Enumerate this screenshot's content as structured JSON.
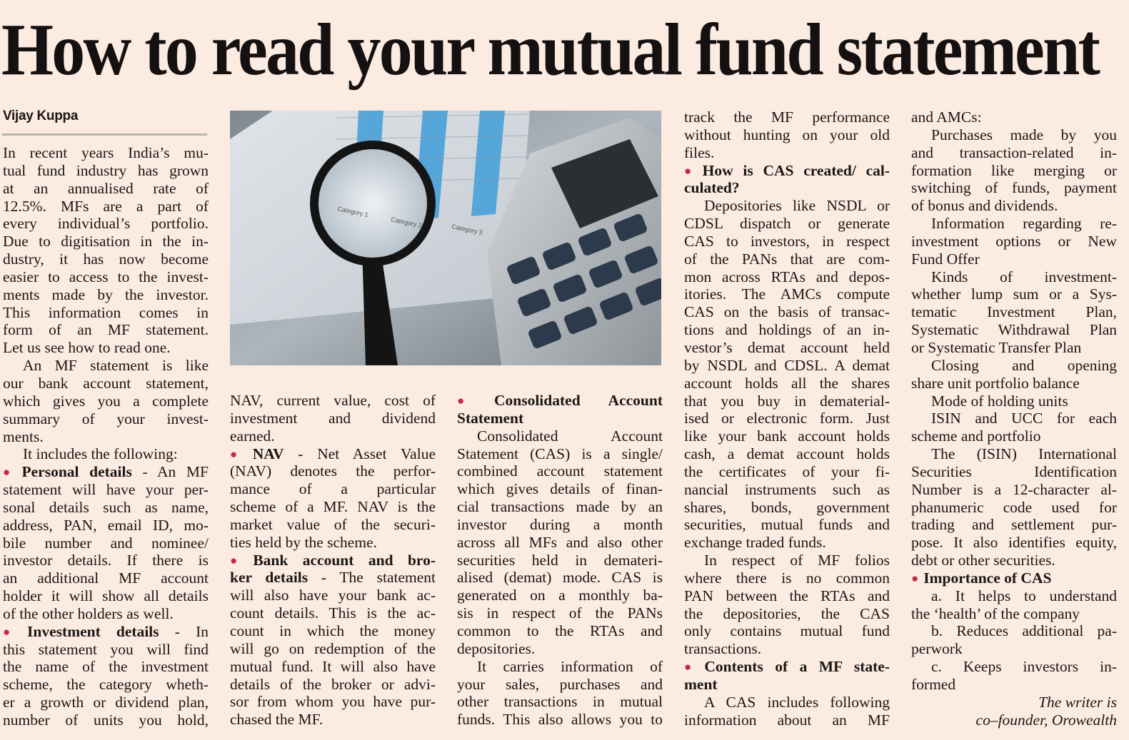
{
  "headline": "How to read your mutual fund statement",
  "byline": "Vijay Kuppa",
  "colors": {
    "background": "#fcebe0",
    "bullet": "#c42a4c",
    "rule": "#b9b3ae"
  },
  "photo": {
    "description_icon": "magnifying-glass-calculator-chart-photo",
    "chart_labels": [
      "Category 1",
      "Category 2",
      "Category 3"
    ]
  },
  "columns": [
    {
      "paragraphs": [
        {
          "style": "plain",
          "lines": [
            "In recent years India’s mu-",
            "tual fund industry has grown",
            "at an annualised rate of",
            "12.5%. MFs are a part of",
            "every individual’s portfolio.",
            "Due to digitisation in the in-",
            "dustry, it has now become",
            "easier to access to the invest-",
            "ments made by the investor.",
            "This information comes in",
            "form of an MF statement.",
            "Let us see how to read one."
          ]
        },
        {
          "style": "indent",
          "lines": [
            "An MF statement is like",
            "our bank account statement,",
            "which gives you a complete",
            "summary of your invest-",
            "ments."
          ]
        },
        {
          "style": "indent",
          "lines": [
            "It includes the following:"
          ]
        },
        {
          "style": "bullet",
          "lines": [
            [
              "Personal details",
              " - An MF"
            ],
            "statement will have your per-",
            "sonal details such as name,",
            "address, PAN, email ID, mo-",
            "bile number and nominee/",
            "investor details. If there is",
            "an additional MF account",
            "holder it will show all details",
            "of the other holders as well."
          ]
        },
        {
          "style": "bullet",
          "continues": true,
          "lines": [
            [
              "Investment details",
              " - In"
            ],
            "this statement you will find",
            "the name of the investment",
            "scheme, the category wheth-",
            "er a growth or dividend plan,",
            "number of units you hold,"
          ]
        }
      ]
    },
    {
      "paragraphs": [
        {
          "style": "plain",
          "lines": [
            "NAV, current value, cost of",
            "investment and dividend",
            "earned."
          ]
        },
        {
          "style": "bullet",
          "lines": [
            [
              "NAV",
              " - Net Asset Value"
            ],
            "(NAV) denotes the perfor-",
            "mance of a particular",
            "scheme of a MF. NAV is the",
            "market value of the securi-",
            "ties held by the scheme."
          ]
        },
        {
          "style": "bullet",
          "lines": [
            [
              "Bank account and bro-",
              ""
            ],
            [
              "ker details",
              " - The statement"
            ],
            "will also have your bank ac-",
            "count details. This is the ac-",
            "count in which the money",
            "will go on redemption of the",
            "mutual fund. It will also have",
            "details of the broker or advi-",
            "sor from whom you have pur-",
            "chased the MF."
          ]
        }
      ]
    },
    {
      "paragraphs": [
        {
          "style": "bullet",
          "lines": [
            [
              "Consolidated Account",
              ""
            ],
            [
              "Statement",
              ""
            ]
          ]
        },
        {
          "style": "indent",
          "lines": [
            "Consolidated Account",
            "Statement (CAS) is a single/",
            "combined account statement",
            "which gives details of finan-",
            "cial transactions made by an",
            "investor during a month",
            "across all MFs and also other",
            "securities held in demateri-",
            "alised (demat) mode. CAS is",
            "generated on a monthly ba-",
            "sis in respect of the PANs",
            "common to the RTAs and",
            "depositories."
          ]
        },
        {
          "style": "indent",
          "continues": true,
          "lines": [
            "It carries information of",
            "your sales, purchases and",
            "other transactions in mutual",
            "funds. This also allows you to"
          ]
        }
      ]
    },
    {
      "paragraphs": [
        {
          "style": "plain",
          "lines": [
            "track the MF performance",
            "without hunting on your old",
            "files."
          ]
        },
        {
          "style": "bullet",
          "lines": [
            [
              "How is CAS created/ cal-",
              ""
            ],
            [
              "culated?",
              ""
            ]
          ]
        },
        {
          "style": "indent",
          "lines": [
            "Depositories like NSDL or",
            "CDSL dispatch or generate",
            "CAS to investors, in respect",
            "of the PANs that are com-",
            "mon across RTAs and depos-",
            "itories. The AMCs compute",
            "CAS on the basis of transac-",
            "tions and holdings of an in-",
            "vestor’s demat account held",
            "by NSDL and CDSL. A demat",
            "account holds all the shares",
            "that you buy in dematerial-",
            "ised or electronic form. Just",
            "like your bank account holds",
            "cash, a demat account holds",
            "the certificates of your fi-",
            "nancial instruments such as",
            "shares, bonds, government",
            "securities, mutual funds and",
            "exchange traded funds."
          ]
        },
        {
          "style": "indent",
          "lines": [
            "In respect of MF folios",
            "where there is no common",
            "PAN between the RTAs and",
            "the depositories, the CAS",
            "only contains mutual fund",
            "transactions."
          ]
        },
        {
          "style": "bullet",
          "lines": [
            [
              "Contents of a MF state-",
              ""
            ],
            [
              "ment",
              ""
            ]
          ]
        },
        {
          "style": "indent",
          "continues": true,
          "lines": [
            "A CAS includes following",
            "information about an MF"
          ]
        }
      ]
    },
    {
      "paragraphs": [
        {
          "style": "plain",
          "lines": [
            "and AMCs:"
          ]
        },
        {
          "style": "indent",
          "lines": [
            "Purchases made by you",
            "and transaction-related in-",
            "formation like merging or",
            "switching of funds, payment",
            "of bonus and dividends."
          ]
        },
        {
          "style": "indent",
          "lines": [
            "Information regarding re-",
            "investment options or New",
            "Fund Offer"
          ]
        },
        {
          "style": "indent",
          "lines": [
            "Kinds of investment-",
            "whether lump sum or a Sys-",
            "tematic Investment Plan,",
            "Systematic Withdrawal Plan",
            "or Systematic Transfer Plan"
          ]
        },
        {
          "style": "indent",
          "lines": [
            "Closing and opening",
            "share unit portfolio balance"
          ]
        },
        {
          "style": "indent",
          "lines": [
            "Mode of holding units"
          ]
        },
        {
          "style": "indent",
          "lines": [
            "ISIN and UCC for each",
            "scheme and portfolio"
          ]
        },
        {
          "style": "indent",
          "lines": [
            "The (ISIN) International",
            "Securities Identification",
            "Number is a 12-character al-",
            "phanumeric code used for",
            "trading and settlement pur-",
            "pose. It also identifies equity,",
            "debt or other securities."
          ]
        },
        {
          "style": "bullet",
          "lines": [
            [
              "Importance of CAS",
              ""
            ]
          ]
        },
        {
          "style": "indent",
          "lines": [
            "a. It helps to understand",
            "the ‘health’ of the company"
          ]
        },
        {
          "style": "indent",
          "lines": [
            "b. Reduces additional pa-",
            "perwork"
          ]
        },
        {
          "style": "indent",
          "lines": [
            "c. Keeps investors in-",
            "formed"
          ]
        },
        {
          "style": "credit",
          "lines": [
            "The writer is",
            "co–founder, Orowealth"
          ]
        }
      ]
    }
  ]
}
